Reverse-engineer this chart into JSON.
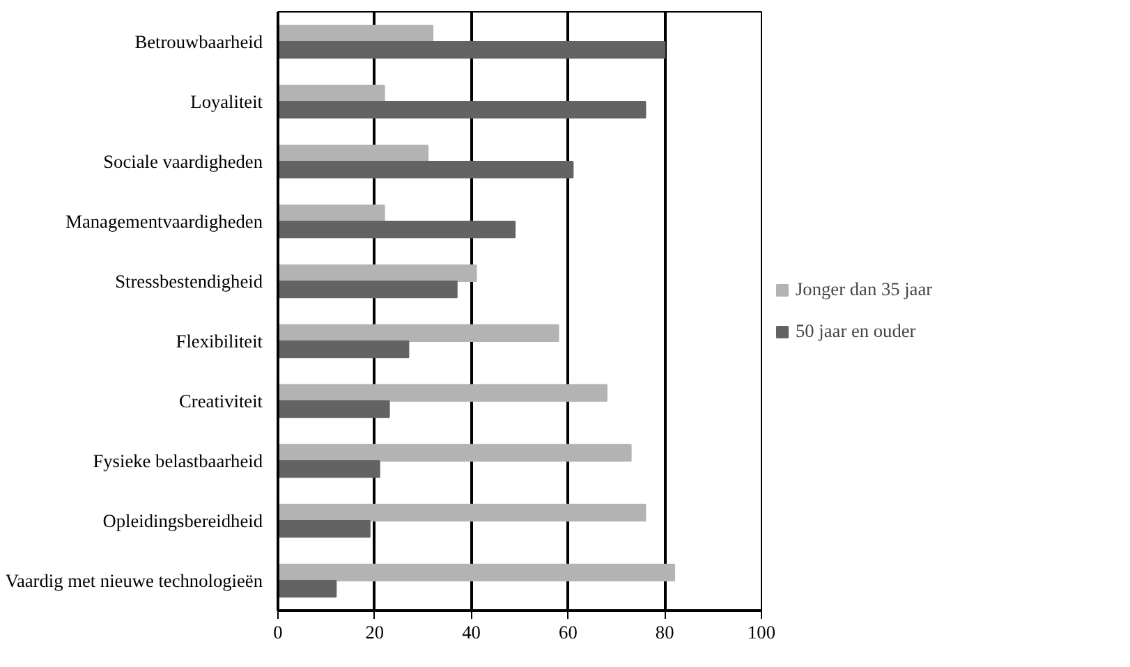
{
  "chart_data": {
    "type": "bar",
    "orientation": "horizontal",
    "categories": [
      "Betrouwbaarheid",
      "Loyaliteit",
      "Sociale vaardigheden",
      "Managementvaardigheden",
      "Stressbestendigheid",
      "Flexibiliteit",
      "Creativiteit",
      "Fysieke belastbaarheid",
      "Opleidingsbereidheid",
      "Vaardig met nieuwe technologieën"
    ],
    "series": [
      {
        "name": "Jonger dan 35 jaar",
        "color": "#b3b3b3",
        "values": [
          32,
          22,
          31,
          22,
          41,
          58,
          68,
          73,
          76,
          82
        ]
      },
      {
        "name": "50 jaar en ouder",
        "color": "#636363",
        "values": [
          80,
          76,
          61,
          49,
          37,
          27,
          23,
          21,
          19,
          12
        ]
      }
    ],
    "xlim": [
      0,
      100
    ],
    "xticks": [
      0,
      20,
      40,
      60,
      80,
      100
    ],
    "grid": "x",
    "legend": "right"
  }
}
